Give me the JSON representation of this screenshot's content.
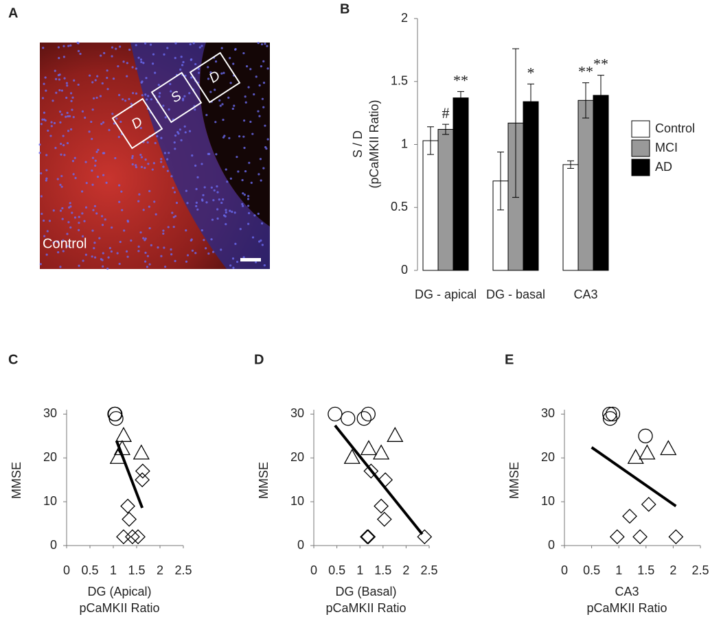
{
  "panel_a": {
    "label": "A",
    "caption": "Control",
    "boxes": [
      "D",
      "S",
      "D"
    ]
  },
  "chart_data": [
    {
      "type": "bar",
      "panel": "B",
      "ylabel": [
        "S / D",
        "(pCaMKII Ratio)"
      ],
      "categories": [
        "DG - apical",
        "DG - basal",
        "CA3"
      ],
      "ylim": [
        0,
        2
      ],
      "yticks": [
        0,
        0.5,
        1,
        1.5,
        2
      ],
      "series": [
        {
          "name": "Control",
          "color": "#ffffff",
          "values": [
            1.03,
            0.71,
            0.84
          ],
          "errors": [
            0.11,
            0.23,
            0.03
          ],
          "annotations": [
            null,
            null,
            null
          ]
        },
        {
          "name": "MCI",
          "color": "#999999",
          "values": [
            1.12,
            1.17,
            1.35
          ],
          "errors": [
            0.04,
            0.59,
            0.14
          ],
          "annotations": [
            "#",
            null,
            "**"
          ]
        },
        {
          "name": "AD",
          "color": "#000000",
          "values": [
            1.37,
            1.34,
            1.39
          ],
          "errors": [
            0.05,
            0.14,
            0.16
          ],
          "annotations": [
            "**",
            "*",
            "**"
          ]
        }
      ]
    },
    {
      "type": "scatter",
      "panel": "C",
      "ylabel": "MMSE",
      "xlabel": [
        "DG (Apical)",
        "pCaMKII Ratio"
      ],
      "xlim": [
        0,
        2.5
      ],
      "xticks": [
        0,
        0.5,
        1,
        1.5,
        2,
        2.5
      ],
      "ylim": [
        0,
        31
      ],
      "yticks": [
        0,
        10,
        20,
        30
      ],
      "series": [
        {
          "marker": "circle",
          "x": [
            1.04,
            1.06,
            1.03
          ],
          "y": [
            30,
            29,
            30
          ]
        },
        {
          "marker": "triangle",
          "x": [
            1.22,
            1.19,
            1.1,
            1.6
          ],
          "y": [
            25,
            22,
            20,
            21
          ]
        },
        {
          "marker": "diamond",
          "x": [
            1.63,
            1.62,
            1.31,
            1.34,
            1.22,
            1.41,
            1.53
          ],
          "y": [
            17,
            15,
            9,
            6,
            2,
            2,
            2
          ]
        }
      ],
      "fit": {
        "x": [
          1.07,
          1.62
        ],
        "y": [
          23.9,
          8.6
        ]
      }
    },
    {
      "type": "scatter",
      "panel": "D",
      "ylabel": "MMSE",
      "xlabel": [
        "DG (Basal)",
        "pCaMKII Ratio"
      ],
      "xlim": [
        0,
        2.5
      ],
      "xticks": [
        0,
        0.5,
        1,
        1.5,
        2,
        2.5
      ],
      "ylim": [
        0,
        31
      ],
      "yticks": [
        0,
        10,
        20,
        30
      ],
      "series": [
        {
          "marker": "circle",
          "x": [
            0.46,
            0.74,
            1.09,
            1.18
          ],
          "y": [
            30,
            29,
            29,
            30
          ]
        },
        {
          "marker": "triangle",
          "x": [
            1.76,
            0.83,
            1.19,
            1.46
          ],
          "y": [
            25,
            20,
            22,
            21
          ]
        },
        {
          "marker": "diamond",
          "x": [
            1.24,
            1.55,
            1.46,
            1.53,
            1.18,
            1.16,
            2.4
          ],
          "y": [
            17,
            15,
            9,
            6,
            2,
            2,
            2
          ]
        }
      ],
      "fit": {
        "x": [
          0.46,
          2.35
        ],
        "y": [
          27.4,
          2.6
        ]
      }
    },
    {
      "type": "scatter",
      "panel": "E",
      "ylabel": "MMSE",
      "xlabel": [
        "CA3",
        "pCaMKII Ratio"
      ],
      "xlim": [
        0,
        2.5
      ],
      "xticks": [
        0,
        0.5,
        1,
        1.5,
        2,
        2.5
      ],
      "ylim": [
        0,
        31
      ],
      "yticks": [
        0,
        10,
        20,
        30
      ],
      "series": [
        {
          "marker": "circle",
          "x": [
            0.83,
            0.89,
            0.84,
            1.49
          ],
          "y": [
            30,
            30,
            29,
            25
          ]
        },
        {
          "marker": "triangle",
          "x": [
            1.31,
            1.52,
            1.91
          ],
          "y": [
            20,
            21,
            22
          ]
        },
        {
          "marker": "diamond",
          "x": [
            0.97,
            1.2,
            1.39,
            1.55,
            2.05
          ],
          "y": [
            2,
            6.7,
            2,
            9.4,
            2
          ]
        }
      ],
      "fit": {
        "x": [
          0.5,
          2.05
        ],
        "y": [
          22.4,
          9
        ]
      }
    }
  ]
}
